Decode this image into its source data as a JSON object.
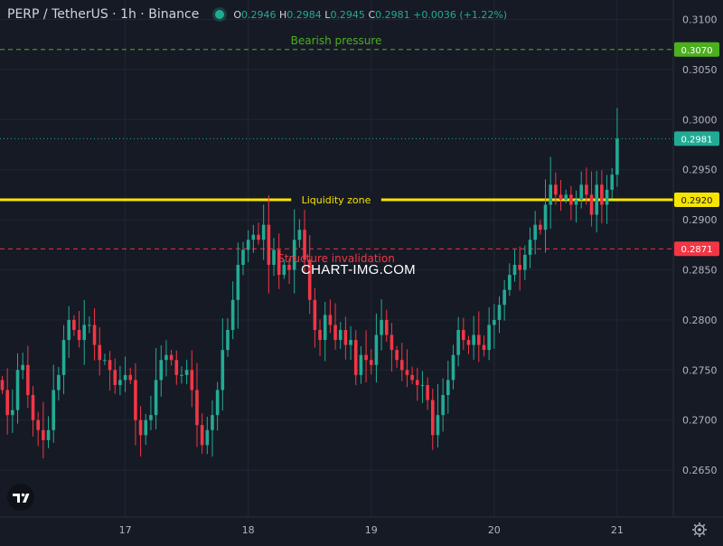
{
  "header": {
    "title": "PERP / TetherUS · 1h · Binance",
    "o_label": "O",
    "o_value": "0.2946",
    "h_label": "H",
    "h_value": "0.2984",
    "l_label": "L",
    "l_value": "0.2945",
    "c_label": "C",
    "c_value": "0.2981",
    "change": "+0.0036 (+1.22%)"
  },
  "watermark": "CHART-IMG.COM",
  "colors": {
    "background": "#161a25",
    "up": "#22ab94",
    "down": "#f23645",
    "grid": "#222633",
    "yellow": "#f7e400",
    "green": "#4caf1f",
    "red": "#f23645"
  },
  "icons": [
    "tradingview-logo-icon",
    "settings-gear-icon"
  ],
  "chart_data": {
    "type": "candlestick",
    "symbol": "PERP / TetherUS",
    "interval": "1h",
    "exchange": "Binance",
    "y_range": [
      0.2614,
      0.3114
    ],
    "yticks": [
      "0.3100",
      "0.3050",
      "0.3000",
      "0.2950",
      "0.2900",
      "0.2850",
      "0.2800",
      "0.2750",
      "0.2700",
      "0.2650"
    ],
    "xticks": [
      {
        "label": "17",
        "index": 24
      },
      {
        "label": "18",
        "index": 48
      },
      {
        "label": "19",
        "index": 72
      },
      {
        "label": "20",
        "index": 96
      },
      {
        "label": "21",
        "index": 120
      }
    ],
    "levels": [
      {
        "label": "Bearish pressure",
        "price": 0.307,
        "price_label": "0.3070",
        "color": "#4caf1f",
        "style": "dashed"
      },
      {
        "label": "Liquidity zone",
        "price": 0.292,
        "price_label": "0.2920",
        "color": "#f7e400",
        "style": "solid"
      },
      {
        "label": "Structure invalidation",
        "price": 0.2871,
        "price_label": "0.2871",
        "color": "#f23645",
        "style": "dashed"
      }
    ],
    "last_price": {
      "price": 0.2981,
      "label": "0.2981"
    },
    "closes": [
      0.273,
      0.2705,
      0.271,
      0.275,
      0.2755,
      0.2725,
      0.27,
      0.269,
      0.268,
      0.269,
      0.273,
      0.2745,
      0.278,
      0.28,
      0.279,
      0.278,
      0.2795,
      0.2795,
      0.2775,
      0.276,
      0.276,
      0.275,
      0.2735,
      0.274,
      0.2745,
      0.274,
      0.27,
      0.2685,
      0.27,
      0.2705,
      0.274,
      0.276,
      0.2765,
      0.276,
      0.2745,
      0.2745,
      0.275,
      0.273,
      0.2695,
      0.2675,
      0.269,
      0.2705,
      0.273,
      0.277,
      0.279,
      0.282,
      0.2855,
      0.287,
      0.288,
      0.2885,
      0.288,
      0.2895,
      0.2855,
      0.287,
      0.2845,
      0.2855,
      0.285,
      0.288,
      0.289,
      0.286,
      0.282,
      0.279,
      0.278,
      0.2805,
      0.2795,
      0.278,
      0.279,
      0.2775,
      0.278,
      0.2745,
      0.2765,
      0.276,
      0.2755,
      0.2785,
      0.28,
      0.2785,
      0.277,
      0.276,
      0.275,
      0.2745,
      0.274,
      0.2735,
      0.2735,
      0.272,
      0.2685,
      0.2705,
      0.2725,
      0.274,
      0.2765,
      0.279,
      0.278,
      0.2775,
      0.2785,
      0.2775,
      0.277,
      0.2795,
      0.28,
      0.2815,
      0.283,
      0.2845,
      0.2855,
      0.285,
      0.2865,
      0.288,
      0.2895,
      0.289,
      0.2915,
      0.2935,
      0.2925,
      0.292,
      0.2925,
      0.2915,
      0.292,
      0.2935,
      0.2925,
      0.2905,
      0.2935,
      0.2915,
      0.293,
      0.2945,
      0.2981
    ]
  }
}
